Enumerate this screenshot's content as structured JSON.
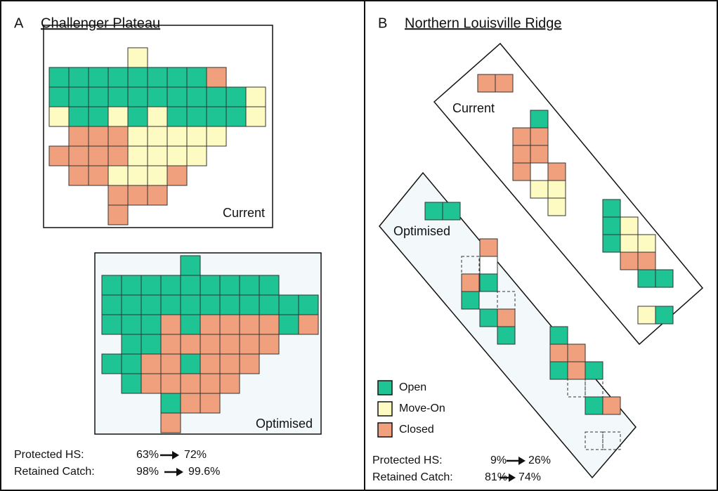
{
  "panels": [
    {
      "label": "A",
      "title": "Challenger Plateau",
      "maps": [
        {
          "label": "Current"
        },
        {
          "label": "Optimised"
        }
      ],
      "stats": [
        {
          "name": "Protected HS:",
          "from": "63%",
          "to": "72%"
        },
        {
          "name": "Retained Catch:",
          "from": "98%",
          "to": "99.6%"
        }
      ]
    },
    {
      "label": "B",
      "title": "Northern Louisville Ridge",
      "maps": [
        {
          "label": "Current"
        },
        {
          "label": "Optimised"
        }
      ],
      "stats": [
        {
          "name": "Protected HS:",
          "from": "9%",
          "to": "26%"
        },
        {
          "name": "Retained Catch:",
          "from": "81%",
          "to": "74%"
        }
      ]
    }
  ],
  "legend": [
    "Open",
    "Move-On",
    "Closed"
  ]
}
